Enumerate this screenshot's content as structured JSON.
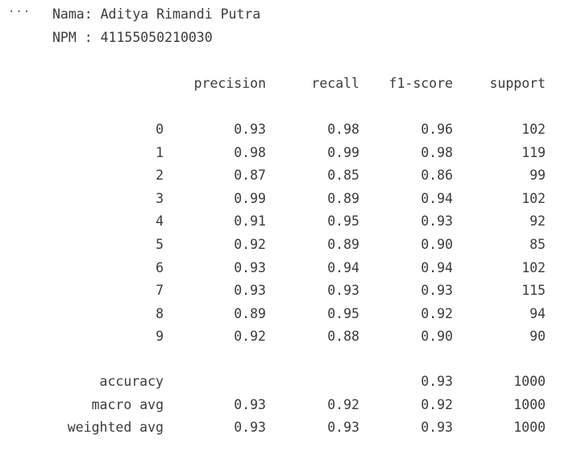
{
  "cell_output": {
    "more_icon": "···",
    "name_line": "Nama: Aditya Rimandi Putra",
    "npm_line": "NPM : 41155050210030"
  },
  "report": {
    "headers": [
      "precision",
      "recall",
      "f1-score",
      "support"
    ],
    "rows": [
      {
        "label": "0",
        "precision": "0.93",
        "recall": "0.98",
        "f1": "0.96",
        "support": "102"
      },
      {
        "label": "1",
        "precision": "0.98",
        "recall": "0.99",
        "f1": "0.98",
        "support": "119"
      },
      {
        "label": "2",
        "precision": "0.87",
        "recall": "0.85",
        "f1": "0.86",
        "support": "99"
      },
      {
        "label": "3",
        "precision": "0.99",
        "recall": "0.89",
        "f1": "0.94",
        "support": "102"
      },
      {
        "label": "4",
        "precision": "0.91",
        "recall": "0.95",
        "f1": "0.93",
        "support": "92"
      },
      {
        "label": "5",
        "precision": "0.92",
        "recall": "0.89",
        "f1": "0.90",
        "support": "85"
      },
      {
        "label": "6",
        "precision": "0.93",
        "recall": "0.94",
        "f1": "0.94",
        "support": "102"
      },
      {
        "label": "7",
        "precision": "0.93",
        "recall": "0.93",
        "f1": "0.93",
        "support": "115"
      },
      {
        "label": "8",
        "precision": "0.89",
        "recall": "0.95",
        "f1": "0.92",
        "support": "94"
      },
      {
        "label": "9",
        "precision": "0.92",
        "recall": "0.88",
        "f1": "0.90",
        "support": "90"
      }
    ],
    "summary": [
      {
        "label": "accuracy",
        "precision": "",
        "recall": "",
        "f1": "0.93",
        "support": "1000"
      },
      {
        "label": "macro avg",
        "precision": "0.93",
        "recall": "0.92",
        "f1": "0.92",
        "support": "1000"
      },
      {
        "label": "weighted avg",
        "precision": "0.93",
        "recall": "0.93",
        "f1": "0.93",
        "support": "1000"
      }
    ]
  }
}
